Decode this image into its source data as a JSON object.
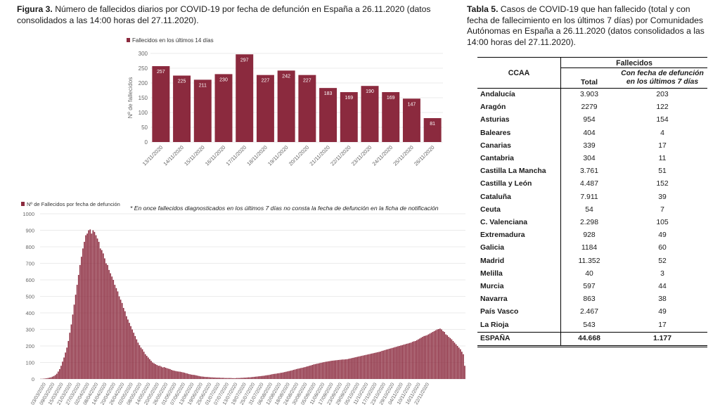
{
  "figure_title": {
    "label": "Figura 3.",
    "text": "Número de fallecidos diarios por COVID-19 por fecha de defunción en España a 26.11.2020 (datos consolidados a las 14:00 horas del 27.11.2020)."
  },
  "table_title": {
    "label": "Tabla 5.",
    "text": "Casos de COVID-19 que han fallecido (total y con fecha de fallecimiento en los últimos 7 días) por Comunidades Autónomas en España a 26.11.2020 (datos consolidados a las 14:00 horas del 27.11.2020)."
  },
  "footnote": "* En once fallecidos diagnosticados en los últimos 7 días no consta la fecha de defunción en la ficha de notificación",
  "colors": {
    "bar": "#8b2a3e",
    "bar_edge": "#ffffff",
    "grid": "#e4e4e4",
    "axis_text": "#666666"
  },
  "chart_data": [
    {
      "type": "bar",
      "legend": "Fallecidos en los últimos 14 días",
      "legend_position": "top-left",
      "ylabel": "Nº de fallecidos",
      "xlabel": "",
      "ylim": [
        0,
        300
      ],
      "yticks": [
        0,
        50,
        100,
        150,
        200,
        250,
        300
      ],
      "categories": [
        "13/11/2020",
        "14/11/2020",
        "15/11/2020",
        "16/11/2020",
        "17/11/2020",
        "18/11/2020",
        "19/11/2020",
        "20/11/2020",
        "21/11/2020",
        "22/11/2020",
        "23/11/2020",
        "24/11/2020",
        "25/11/2020",
        "26/11/2020"
      ],
      "values": [
        257,
        225,
        211,
        230,
        297,
        227,
        242,
        227,
        183,
        169,
        190,
        169,
        147,
        81
      ],
      "data_labels": true
    },
    {
      "type": "bar",
      "legend": "Nº de Fallecidos por fecha de defunción",
      "legend_position": "top-left",
      "ylabel": "",
      "xlabel": "",
      "ylim": [
        0,
        1000
      ],
      "yticks": [
        0,
        100,
        200,
        300,
        400,
        500,
        600,
        700,
        800,
        900,
        1000
      ],
      "start_date": "2020-03-01",
      "xtick_labels": [
        "03/03/2020",
        "09/03/2020",
        "15/03/2020",
        "21/03/2020",
        "27/03/2020",
        "02/04/2020",
        "08/04/2020",
        "14/04/2020",
        "20/04/2020",
        "26/04/2020",
        "02/05/2020",
        "08/05/2020",
        "14/05/2020",
        "20/05/2020",
        "26/05/2020",
        "01/06/2020",
        "07/06/2020",
        "13/06/2020",
        "19/06/2020",
        "25/06/2020",
        "01/07/2020",
        "07/07/2020",
        "13/07/2020",
        "19/07/2020",
        "25/07/2020",
        "31/07/2020",
        "06/08/2020",
        "12/08/2020",
        "18/08/2020",
        "24/08/2020",
        "30/08/2020",
        "05/09/2020",
        "11/09/2020",
        "17/09/2020",
        "23/09/2020",
        "29/09/2020",
        "05/10/2020",
        "11/10/2020",
        "17/10/2020",
        "23/10/2020",
        "29/10/2020",
        "04/11/2020",
        "10/11/2020",
        "16/11/2020",
        "22/11/2020"
      ],
      "values": [
        1,
        1,
        2,
        3,
        4,
        6,
        8,
        10,
        14,
        18,
        24,
        32,
        45,
        60,
        80,
        105,
        130,
        160,
        190,
        230,
        280,
        330,
        390,
        450,
        510,
        570,
        630,
        690,
        740,
        790,
        830,
        870,
        880,
        900,
        905,
        880,
        900,
        890,
        870,
        850,
        830,
        790,
        780,
        760,
        730,
        700,
        690,
        660,
        640,
        620,
        600,
        570,
        550,
        530,
        500,
        480,
        460,
        430,
        410,
        380,
        360,
        340,
        320,
        300,
        280,
        260,
        240,
        220,
        205,
        190,
        180,
        165,
        150,
        140,
        130,
        120,
        110,
        100,
        95,
        90,
        85,
        80,
        80,
        75,
        70,
        72,
        68,
        65,
        62,
        60,
        55,
        52,
        50,
        48,
        46,
        45,
        44,
        42,
        40,
        38,
        35,
        33,
        30,
        28,
        26,
        25,
        24,
        22,
        20,
        18,
        16,
        15,
        14,
        13,
        12,
        12,
        11,
        10,
        10,
        9,
        9,
        8,
        8,
        8,
        7,
        7,
        7,
        6,
        6,
        6,
        6,
        6,
        5,
        5,
        5,
        6,
        6,
        6,
        7,
        7,
        8,
        8,
        9,
        10,
        10,
        11,
        12,
        13,
        14,
        15,
        16,
        17,
        18,
        19,
        20,
        22,
        23,
        24,
        26,
        28,
        30,
        31,
        32,
        34,
        35,
        37,
        38,
        40,
        42,
        44,
        46,
        48,
        50,
        52,
        55,
        57,
        60,
        62,
        64,
        66,
        68,
        70,
        72,
        75,
        77,
        80,
        82,
        85,
        88,
        90,
        92,
        94,
        96,
        98,
        100,
        102,
        104,
        105,
        107,
        108,
        110,
        111,
        112,
        113,
        114,
        115,
        116,
        117,
        118,
        118,
        119,
        120,
        122,
        124,
        126,
        128,
        130,
        132,
        134,
        136,
        138,
        140,
        142,
        144,
        146,
        148,
        150,
        152,
        154,
        156,
        158,
        160,
        162,
        164,
        166,
        170,
        172,
        175,
        178,
        180,
        183,
        185,
        188,
        190,
        193,
        195,
        198,
        200,
        203,
        205,
        208,
        210,
        213,
        215,
        218,
        220,
        225,
        228,
        230,
        235,
        240,
        245,
        250,
        255,
        260,
        262,
        265,
        270,
        275,
        280,
        285,
        290,
        295,
        300,
        302,
        305,
        300,
        290,
        285,
        270,
        265,
        255,
        248,
        240,
        230,
        220,
        210,
        200,
        190,
        180,
        165,
        150,
        80
      ]
    }
  ],
  "table": {
    "group_header": "Fallecidos",
    "col_ccaa": "CCAA",
    "col_total": "Total",
    "col_recent": "Con fecha de defunción en los últimos 7 días",
    "rows": [
      {
        "ccaa": "Andalucía",
        "total": "3.903",
        "recent": "203"
      },
      {
        "ccaa": "Aragón",
        "total": "2279",
        "recent": "122"
      },
      {
        "ccaa": "Asturias",
        "total": "954",
        "recent": "154"
      },
      {
        "ccaa": "Baleares",
        "total": "404",
        "recent": "4"
      },
      {
        "ccaa": "Canarias",
        "total": "339",
        "recent": "17"
      },
      {
        "ccaa": "Cantabria",
        "total": "304",
        "recent": "11"
      },
      {
        "ccaa": "Castilla La Mancha",
        "total": "3.761",
        "recent": "51"
      },
      {
        "ccaa": "Castilla y León",
        "total": "4.487",
        "recent": "152"
      },
      {
        "ccaa": "Cataluña",
        "total": "7.911",
        "recent": "39"
      },
      {
        "ccaa": "Ceuta",
        "total": "54",
        "recent": "7"
      },
      {
        "ccaa": "C. Valenciana",
        "total": "2.298",
        "recent": "105"
      },
      {
        "ccaa": "Extremadura",
        "total": "928",
        "recent": "49"
      },
      {
        "ccaa": "Galicia",
        "total": "1184",
        "recent": "60"
      },
      {
        "ccaa": "Madrid",
        "total": "11.352",
        "recent": "52"
      },
      {
        "ccaa": "Melilla",
        "total": "40",
        "recent": "3"
      },
      {
        "ccaa": "Murcia",
        "total": "597",
        "recent": "44"
      },
      {
        "ccaa": "Navarra",
        "total": "863",
        "recent": "38"
      },
      {
        "ccaa": "País Vasco",
        "total": "2.467",
        "recent": "49"
      },
      {
        "ccaa": "La Rioja",
        "total": "543",
        "recent": "17"
      }
    ],
    "total_row": {
      "ccaa": "ESPAÑA",
      "total": "44.668",
      "recent": "1.177"
    }
  }
}
